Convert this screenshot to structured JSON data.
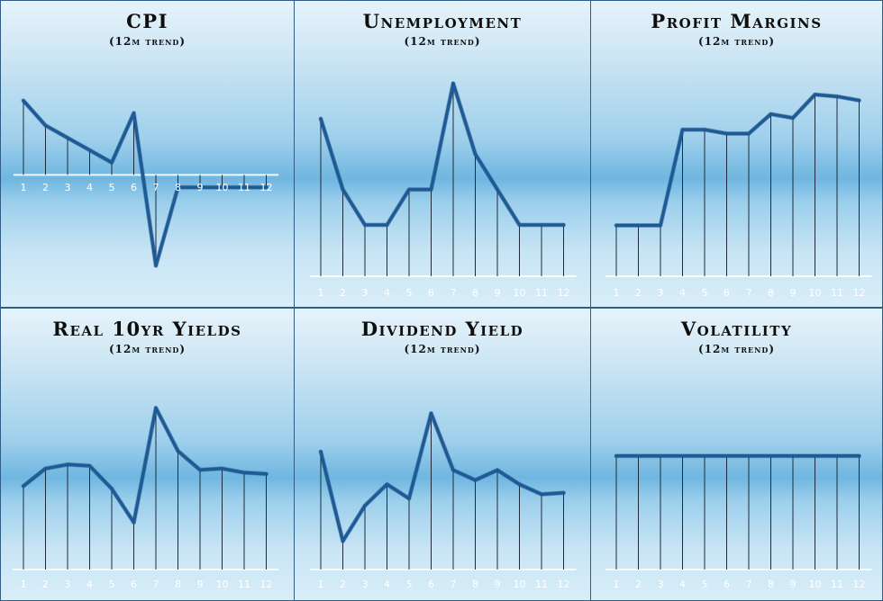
{
  "chart_data": [
    {
      "type": "line",
      "title": "CPI",
      "subtitle": "(12m trend)",
      "categories": [
        "1",
        "2",
        "3",
        "4",
        "5",
        "6",
        "7",
        "8",
        "9",
        "10",
        "11",
        "12"
      ],
      "values": [
        1.8,
        1.2,
        0.9,
        0.6,
        0.3,
        1.5,
        -2.2,
        -0.3,
        -0.3,
        -0.3,
        -0.3,
        -0.3
      ],
      "ylim": [
        -2.5,
        2.3
      ],
      "baseline": 0,
      "grid": false,
      "color": "#1d5a96"
    },
    {
      "type": "line",
      "title": "Unemployment",
      "subtitle": "(12m trend)",
      "categories": [
        "1",
        "2",
        "3",
        "4",
        "5",
        "6",
        "7",
        "8",
        "9",
        "10",
        "11",
        "12"
      ],
      "values": [
        8.0,
        4.0,
        2.0,
        2.0,
        4.0,
        4.0,
        10.0,
        6.0,
        4.0,
        2.0,
        2.0,
        2.0
      ],
      "ylim": [
        -0.9,
        11.0
      ],
      "baseline": -0.9,
      "grid": false,
      "color": "#1d5a96"
    },
    {
      "type": "line",
      "title": "Profit Margins",
      "subtitle": "(12m trend)",
      "categories": [
        "1",
        "2",
        "3",
        "4",
        "5",
        "6",
        "7",
        "8",
        "9",
        "10",
        "11",
        "12"
      ],
      "values": [
        2.6,
        2.6,
        2.6,
        7.5,
        7.5,
        7.3,
        7.3,
        8.3,
        8.1,
        9.3,
        9.2,
        9.0
      ],
      "ylim": [
        0,
        10.5
      ],
      "baseline": 0,
      "grid": false,
      "color": "#1d5a96"
    },
    {
      "type": "line",
      "title": "Real 10yr Yields",
      "subtitle": "(12m trend)",
      "categories": [
        "1",
        "2",
        "3",
        "4",
        "5",
        "6",
        "7",
        "8",
        "9",
        "10",
        "11",
        "12"
      ],
      "values": [
        4.7,
        6.0,
        6.3,
        6.2,
        4.5,
        2.0,
        10.5,
        7.3,
        5.9,
        6.0,
        5.7,
        5.6
      ],
      "ylim": [
        -1.5,
        12.0
      ],
      "baseline": -1.5,
      "grid": false,
      "color": "#1d5a96"
    },
    {
      "type": "line",
      "title": "Dividend Yield",
      "subtitle": "(12m trend)",
      "categories": [
        "1",
        "2",
        "3",
        "4",
        "5",
        "6",
        "7",
        "8",
        "9",
        "10",
        "11",
        "12"
      ],
      "values": [
        7.8,
        1.5,
        4.0,
        5.5,
        4.5,
        10.5,
        6.5,
        5.8,
        6.5,
        5.5,
        4.8,
        4.9
      ],
      "ylim": [
        -0.5,
        12.3
      ],
      "baseline": -0.5,
      "grid": false,
      "color": "#1d5a96"
    },
    {
      "type": "line",
      "title": "Volatility",
      "subtitle": "(12m trend)",
      "categories": [
        "1",
        "2",
        "3",
        "4",
        "5",
        "6",
        "7",
        "8",
        "9",
        "10",
        "11",
        "12"
      ],
      "values": [
        5,
        5,
        5,
        5,
        5,
        5,
        5,
        5,
        5,
        5,
        5,
        5
      ],
      "ylim": [
        0,
        8
      ],
      "baseline": 0,
      "grid": false,
      "color": "#1d5a96"
    }
  ]
}
